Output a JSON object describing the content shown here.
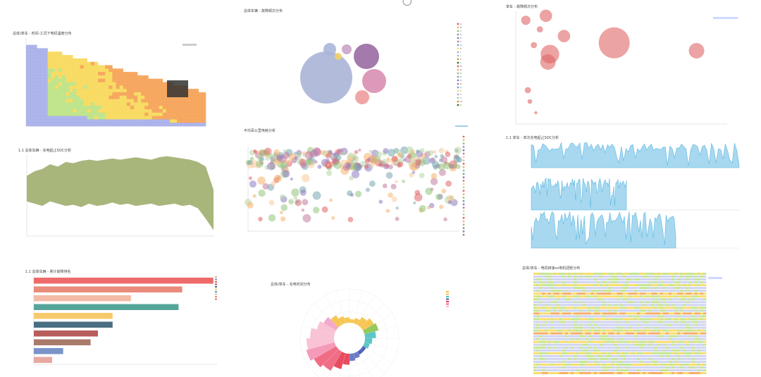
{
  "dashboard": {
    "top_circle": "◯"
  },
  "charts": [
    {
      "id": "heatmap1",
      "title": "总体/单车 - 时间-工况下电机温度分布",
      "type": "heatmap",
      "colors": [
        "#a0a8e8",
        "#b6e07a",
        "#f7d64c",
        "#f59a48"
      ]
    },
    {
      "id": "bubble-pack",
      "title": "总体车辆 - 故障频次分布",
      "type": "scatter",
      "bubbles": [
        {
          "label": "A",
          "value": 100,
          "color": "#aab4d6"
        },
        {
          "label": "B",
          "value": 24,
          "color": "#9a6aa3"
        },
        {
          "label": "C",
          "value": 22,
          "color": "#d98fb0"
        },
        {
          "label": "D",
          "value": 9,
          "color": "#ee9c9c"
        },
        {
          "label": "E",
          "value": 4,
          "color": "#a8b6d8"
        },
        {
          "label": "F",
          "value": 3,
          "color": "#c9a4c9"
        },
        {
          "label": "G",
          "value": 2,
          "color": "#f2d266"
        }
      ],
      "legend_items": [
        "A",
        "B",
        "C",
        "D",
        "E",
        "F",
        "G",
        "H",
        "I",
        "J",
        "K",
        "L",
        "M",
        "N",
        "O",
        "P",
        "Q",
        "R",
        "S",
        "T",
        "U",
        "V",
        "W",
        "X"
      ]
    },
    {
      "id": "bubble-scatter",
      "title": "单车 - 故障频次分布",
      "type": "scatter",
      "color": "#e06666",
      "points": [
        {
          "x": 10,
          "y": 92,
          "r": 3
        },
        {
          "x": 18,
          "y": 70,
          "r": 2
        },
        {
          "x": 24,
          "y": 84,
          "r": 2
        },
        {
          "x": 30,
          "y": 96,
          "r": 4
        },
        {
          "x": 32,
          "y": 55,
          "r": 5
        },
        {
          "x": 34,
          "y": 62,
          "r": 6
        },
        {
          "x": 48,
          "y": 78,
          "r": 4
        },
        {
          "x": 98,
          "y": 72,
          "r": 10
        },
        {
          "x": 180,
          "y": 65,
          "r": 5
        },
        {
          "x": 12,
          "y": 30,
          "r": 2
        },
        {
          "x": 14,
          "y": 20,
          "r": 1.5
        },
        {
          "x": 20,
          "y": 10,
          "r": 1
        }
      ]
    },
    {
      "id": "area-green",
      "title": "1.1 总体车辆 - 充电起止SOC分析",
      "type": "area",
      "color": "#9fae6e",
      "upper": [
        52,
        56,
        58,
        62,
        60,
        64,
        63,
        65,
        66,
        65,
        66,
        67,
        66,
        67,
        68,
        67,
        66,
        68,
        69,
        68,
        67,
        66,
        64,
        60,
        40
      ],
      "lower": [
        30,
        28,
        26,
        30,
        28,
        26,
        27,
        25,
        28,
        26,
        27,
        29,
        27,
        28,
        26,
        27,
        28,
        26,
        27,
        28,
        26,
        27,
        24,
        15,
        5
      ]
    },
    {
      "id": "scatter-multi",
      "title": "平均百公里电耗分析",
      "type": "scatter",
      "colors": [
        "#e06666",
        "#f6b26b",
        "#93c47d",
        "#76a5af",
        "#8e7cc3",
        "#c27ba0",
        "#f9cb9c",
        "#b6d7a8"
      ]
    },
    {
      "id": "multi-line",
      "title": "1.1 单车 - 单次充电起止SOC分析",
      "type": "line",
      "color": "#5bb7e0",
      "fill": "#a7d8f0"
    },
    {
      "id": "hbar",
      "title": "1.1 总体车辆 - 累计故障排名",
      "type": "bar",
      "categories": [
        "c1",
        "c2",
        "c3",
        "c4",
        "c5",
        "c6",
        "c7",
        "c8",
        "c9",
        "c10"
      ],
      "values": [
        10,
        16,
        31,
        35,
        43,
        43,
        79,
        53,
        81,
        98
      ],
      "colors": [
        "#e8a8a2",
        "#7a94c9",
        "#a97a6a",
        "#b85c5c",
        "#4a6e82",
        "#f6c96b",
        "#56a59a",
        "#f2bca6",
        "#e98b7b",
        "#ef6a6a"
      ]
    },
    {
      "id": "polar",
      "title": "总体/单车 - 充电时间分布",
      "type": "bar",
      "values": [
        2,
        3,
        5,
        7,
        8,
        6,
        4,
        3,
        2,
        2,
        3,
        4,
        6,
        9,
        12,
        14,
        16,
        15,
        13,
        10,
        8,
        6,
        4,
        3
      ],
      "colors": [
        "#f6c142",
        "#f6c142",
        "#f6c142",
        "#f6c142",
        "#8bc34a",
        "#4bc0c0",
        "#4bc0c0",
        "#4bc0c0",
        "#3f51b5",
        "#3f51b5",
        "#5c6bc0",
        "#5c6bc0",
        "#e53950",
        "#e53950",
        "#ef5d78",
        "#ef5d78",
        "#f48fb1",
        "#f8bbd0",
        "#f8bbd0",
        "#f8bbd0",
        "#f3a0c8",
        "#f6c142",
        "#f6c142",
        "#f6c142"
      ]
    },
    {
      "id": "heatmap2",
      "title": "总体/单车 - 电机转速vs电机扭矩分布",
      "type": "heatmap",
      "colors": [
        "#c5cbf0",
        "#b6e07a",
        "#f7d64c",
        "#f59a48"
      ]
    }
  ]
}
